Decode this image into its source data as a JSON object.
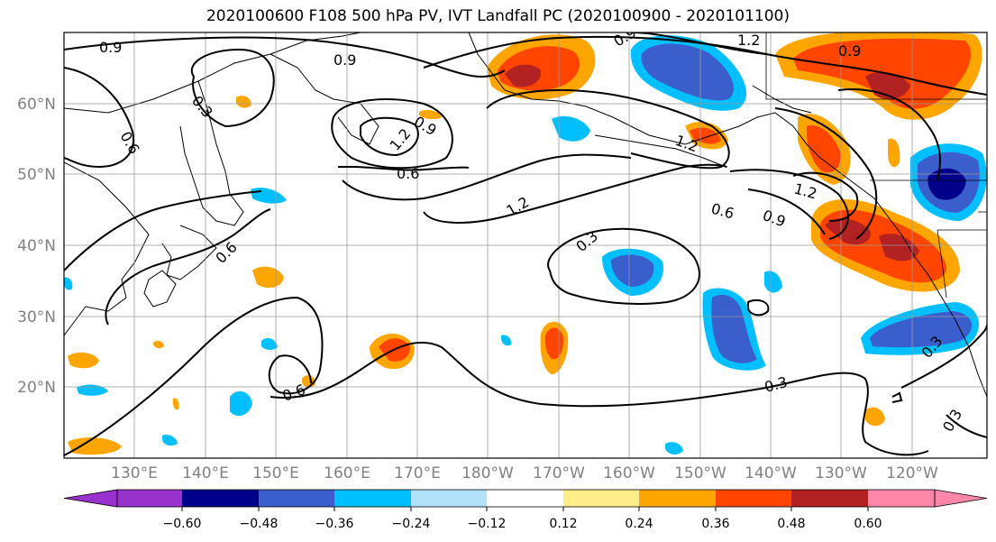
{
  "title": "2020100600 F108 500 hPa PV, IVT Landfall PC (2020100900 - 2020101100)",
  "lat_labels": [
    "60°N",
    "50°N",
    "40°N",
    "30°N",
    "20°N"
  ],
  "lon_labels": [
    "130°E",
    "140°E",
    "150°E",
    "160°E",
    "170°E",
    "180°W",
    "170°W",
    "160°W",
    "150°W",
    "140°W",
    "130°W",
    "120°W"
  ],
  "contour_labels": [
    "0.9",
    "0.9",
    "0.9",
    "0.6",
    "0.3",
    "0.9",
    "1.2",
    "0.6",
    "1.2",
    "1.2",
    "1.2",
    "0.9",
    "1.2",
    "0.6",
    "0.9",
    "0.6",
    "0.3",
    "0.6",
    "0.3",
    "0.3",
    "0.3"
  ],
  "colorbar": {
    "ticks": [
      "−0.60",
      "−0.48",
      "−0.36",
      "−0.24",
      "−0.12",
      "0.12",
      "0.24",
      "0.36",
      "0.48",
      "0.60"
    ],
    "colors": [
      "#9932cc",
      "#00008b",
      "#3a5fcd",
      "#00bfff",
      "#b2e2fa",
      "#ffffff",
      "#ffec8b",
      "#ffa500",
      "#ff4500",
      "#b22222",
      "#ff88aa"
    ]
  }
}
